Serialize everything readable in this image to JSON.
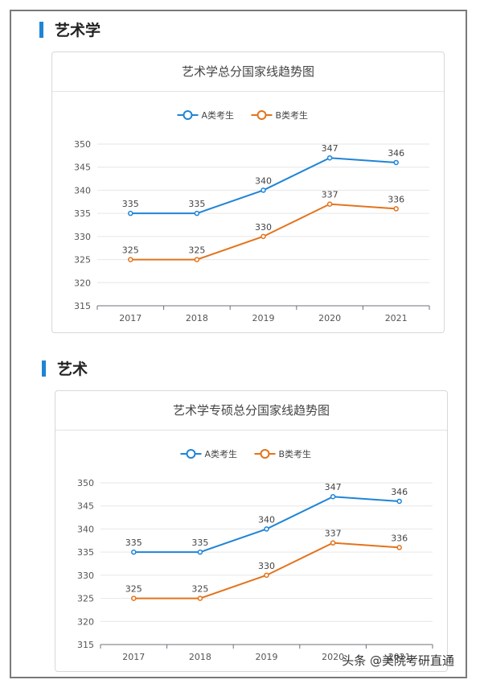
{
  "sections": [
    {
      "title": "艺术学"
    },
    {
      "title": "艺术"
    }
  ],
  "colors": {
    "series_a": "#1f84d6",
    "series_b": "#e3731c",
    "section_bar": "#1f84d6"
  },
  "chart_data": [
    {
      "type": "line",
      "title": "艺术学总分国家线趋势图",
      "categories": [
        "2017",
        "2018",
        "2019",
        "2020",
        "2021"
      ],
      "series": [
        {
          "name": "A类考生",
          "values": [
            335,
            335,
            340,
            347,
            346
          ]
        },
        {
          "name": "B类考生",
          "values": [
            325,
            325,
            330,
            337,
            336
          ]
        }
      ],
      "yticks": [
        315,
        320,
        325,
        330,
        335,
        340,
        345,
        350
      ],
      "ylim": [
        315,
        350
      ],
      "legend": "top-center",
      "grid": true,
      "xlabel": "",
      "ylabel": ""
    },
    {
      "type": "line",
      "title": "艺术学专硕总分国家线趋势图",
      "categories": [
        "2017",
        "2018",
        "2019",
        "2020",
        "2021"
      ],
      "series": [
        {
          "name": "A类考生",
          "values": [
            335,
            335,
            340,
            347,
            346
          ]
        },
        {
          "name": "B类考生",
          "values": [
            325,
            325,
            330,
            337,
            336
          ]
        }
      ],
      "yticks": [
        315,
        320,
        325,
        330,
        335,
        340,
        345,
        350
      ],
      "ylim": [
        315,
        350
      ],
      "legend": "top-center",
      "grid": true,
      "xlabel": "",
      "ylabel": ""
    }
  ],
  "watermark": "头条 @美院考研直通"
}
